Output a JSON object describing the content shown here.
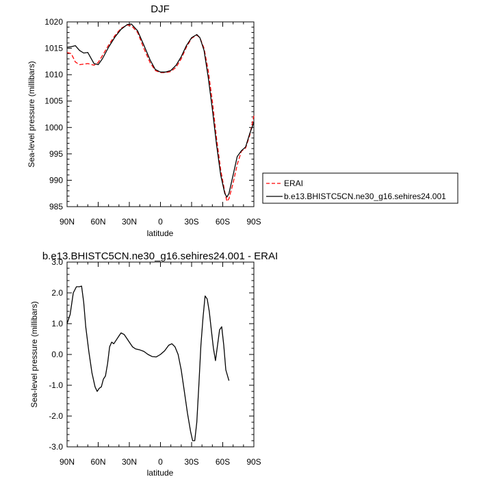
{
  "chart_data": [
    {
      "type": "line",
      "title": "DJF",
      "xlabel": "latitude",
      "ylabel": "Sea-level pressure (millibars)",
      "xlim": [
        90,
        -90
      ],
      "ylim": [
        985,
        1020
      ],
      "x_ticks": [
        90,
        60,
        30,
        0,
        -30,
        -60,
        -90
      ],
      "x_tick_labels": [
        "90N",
        "60N",
        "30N",
        "0",
        "30S",
        "60S",
        "90S"
      ],
      "y_ticks": [
        985,
        990,
        995,
        1000,
        1005,
        1010,
        1015,
        1020
      ],
      "y_tick_labels": [
        "985",
        "990",
        "995",
        "1000",
        "1005",
        "1010",
        "1015",
        "1020"
      ],
      "legend_position": "right",
      "series": [
        {
          "name": "ERAI",
          "color": "#ff0000",
          "dash": "dashed",
          "points": [
            [
              90,
              1014.2
            ],
            [
              86,
              1014.0
            ],
            [
              82,
              1012.4
            ],
            [
              78,
              1011.9
            ],
            [
              74,
              1012.0
            ],
            [
              70,
              1012.1
            ],
            [
              64,
              1011.8
            ],
            [
              60,
              1012.3
            ],
            [
              56,
              1013.6
            ],
            [
              50,
              1015.6
            ],
            [
              44,
              1017.4
            ],
            [
              38,
              1018.8
            ],
            [
              32,
              1019.4
            ],
            [
              28,
              1019.3
            ],
            [
              22,
              1018.0
            ],
            [
              16,
              1015.0
            ],
            [
              10,
              1012.3
            ],
            [
              5,
              1010.8
            ],
            [
              0,
              1010.4
            ],
            [
              -5,
              1010.4
            ],
            [
              -10,
              1010.6
            ],
            [
              -15,
              1011.4
            ],
            [
              -20,
              1013.0
            ],
            [
              -25,
              1015.2
            ],
            [
              -30,
              1016.9
            ],
            [
              -35,
              1017.5
            ],
            [
              -38,
              1017.0
            ],
            [
              -42,
              1015.0
            ],
            [
              -46,
              1010.8
            ],
            [
              -50,
              1005.0
            ],
            [
              -54,
              998.0
            ],
            [
              -58,
              992.0
            ],
            [
              -62,
              987.8
            ],
            [
              -64,
              986.0
            ],
            [
              -66,
              986.5
            ],
            [
              -70,
              989.5
            ],
            [
              -74,
              993.0
            ],
            [
              -78,
              995.5
            ],
            [
              -82,
              996.1
            ],
            [
              -86,
              998.5
            ],
            [
              -90,
              1002.2
            ]
          ]
        },
        {
          "name": "b.e13.BHISTC5CN.ne30_g16.sehires24.001",
          "color": "#000000",
          "dash": "solid",
          "points": [
            [
              90,
              1015.2
            ],
            [
              86,
              1015.3
            ],
            [
              82,
              1015.5
            ],
            [
              78,
              1014.6
            ],
            [
              74,
              1014.1
            ],
            [
              70,
              1014.2
            ],
            [
              64,
              1012.1
            ],
            [
              60,
              1011.9
            ],
            [
              56,
              1013.0
            ],
            [
              50,
              1015.2
            ],
            [
              44,
              1017.1
            ],
            [
              38,
              1018.6
            ],
            [
              32,
              1019.5
            ],
            [
              28,
              1019.6
            ],
            [
              22,
              1018.3
            ],
            [
              16,
              1015.6
            ],
            [
              10,
              1012.8
            ],
            [
              5,
              1011.0
            ],
            [
              0,
              1010.5
            ],
            [
              -5,
              1010.5
            ],
            [
              -10,
              1010.8
            ],
            [
              -15,
              1011.8
            ],
            [
              -20,
              1013.4
            ],
            [
              -25,
              1015.5
            ],
            [
              -30,
              1017.0
            ],
            [
              -35,
              1017.6
            ],
            [
              -38,
              1017.0
            ],
            [
              -42,
              1014.6
            ],
            [
              -46,
              1009.5
            ],
            [
              -50,
              1003.5
            ],
            [
              -54,
              996.8
            ],
            [
              -58,
              991.0
            ],
            [
              -62,
              987.5
            ],
            [
              -64,
              986.8
            ],
            [
              -66,
              987.5
            ],
            [
              -70,
              991.0
            ],
            [
              -74,
              994.5
            ],
            [
              -78,
              995.6
            ],
            [
              -82,
              996.3
            ],
            [
              -86,
              998.8
            ],
            [
              -90,
              1001.0
            ]
          ]
        }
      ]
    },
    {
      "type": "line",
      "title": "b.e13.BHISTC5CN.ne30_g16.sehires24.001 - ERAI",
      "xlabel": "latitude",
      "ylabel": "Sea-level pressure (millibars)",
      "xlim": [
        90,
        -90
      ],
      "ylim": [
        -3.0,
        3.0
      ],
      "x_ticks": [
        90,
        60,
        30,
        0,
        -30,
        -60,
        -90
      ],
      "x_tick_labels": [
        "90N",
        "60N",
        "30N",
        "0",
        "30S",
        "60S",
        "90S"
      ],
      "y_ticks": [
        -3.0,
        -2.0,
        -1.0,
        0.0,
        1.0,
        2.0,
        3.0
      ],
      "y_tick_labels": [
        "-3.0",
        "-2.0",
        "-1.0",
        "0.0",
        "1.0",
        "2.0",
        "3.0"
      ],
      "series": [
        {
          "color": "#000000",
          "dash": "solid",
          "points": [
            [
              90,
              1.0
            ],
            [
              87,
              1.3
            ],
            [
              84,
              2.0
            ],
            [
              81,
              2.2
            ],
            [
              78,
              2.2
            ],
            [
              76,
              2.22
            ],
            [
              74,
              1.7
            ],
            [
              72,
              0.9
            ],
            [
              69,
              0.1
            ],
            [
              66,
              -0.6
            ],
            [
              63,
              -1.05
            ],
            [
              61,
              -1.2
            ],
            [
              59,
              -1.1
            ],
            [
              57,
              -1.05
            ],
            [
              55,
              -0.8
            ],
            [
              53,
              -0.7
            ],
            [
              51,
              -0.3
            ],
            [
              49,
              0.25
            ],
            [
              47,
              0.4
            ],
            [
              45,
              0.35
            ],
            [
              43,
              0.45
            ],
            [
              40,
              0.6
            ],
            [
              38,
              0.7
            ],
            [
              35,
              0.65
            ],
            [
              32,
              0.5
            ],
            [
              30,
              0.4
            ],
            [
              27,
              0.25
            ],
            [
              24,
              0.18
            ],
            [
              20,
              0.15
            ],
            [
              16,
              0.1
            ],
            [
              12,
              0.0
            ],
            [
              8,
              -0.07
            ],
            [
              4,
              -0.08
            ],
            [
              0,
              0.0
            ],
            [
              -4,
              0.12
            ],
            [
              -8,
              0.3
            ],
            [
              -11,
              0.35
            ],
            [
              -14,
              0.25
            ],
            [
              -17,
              0.0
            ],
            [
              -20,
              -0.5
            ],
            [
              -23,
              -1.2
            ],
            [
              -26,
              -1.9
            ],
            [
              -29,
              -2.5
            ],
            [
              -31,
              -2.8
            ],
            [
              -33,
              -2.8
            ],
            [
              -35,
              -2.2
            ],
            [
              -37,
              -1.0
            ],
            [
              -39,
              0.3
            ],
            [
              -41,
              1.2
            ],
            [
              -43,
              1.9
            ],
            [
              -45,
              1.8
            ],
            [
              -47,
              1.4
            ],
            [
              -49,
              0.8
            ],
            [
              -51,
              0.2
            ],
            [
              -53,
              -0.2
            ],
            [
              -55,
              0.3
            ],
            [
              -57,
              0.8
            ],
            [
              -59,
              0.9
            ],
            [
              -61,
              0.3
            ],
            [
              -63,
              -0.5
            ],
            [
              -66,
              -0.85
            ]
          ]
        }
      ]
    }
  ]
}
